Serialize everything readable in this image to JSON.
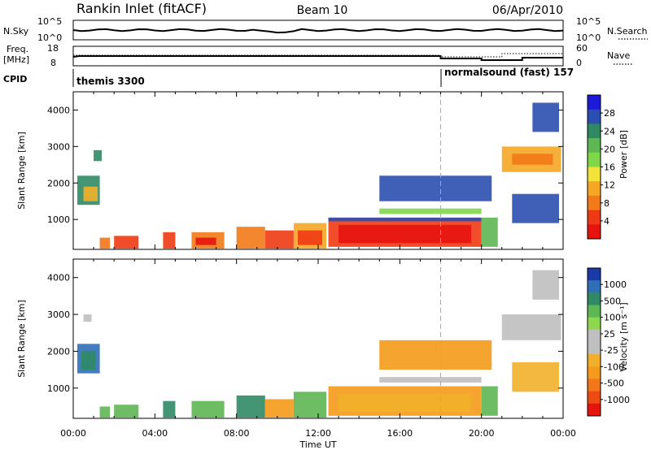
{
  "header": {
    "station": "Rankin Inlet (fitACF)",
    "beam": "Beam 10",
    "date": "06/Apr/2010"
  },
  "nsky_panel": {
    "left_label": "N.Sky",
    "left_ticks": [
      "10^5",
      "10^0"
    ],
    "right_label": "N.Search",
    "right_ticks": [
      "10^5",
      "10^0"
    ]
  },
  "freq_panel": {
    "left_label_line1": "Freq.",
    "left_label_line2": "[MHz]",
    "left_ticks": [
      "18",
      "8"
    ],
    "right_label": "Nave",
    "right_ticks": [
      "60",
      "0"
    ]
  },
  "cpid_panel": {
    "label": "CPID",
    "segments": [
      {
        "name": "themis 3300",
        "start_hour": 0,
        "end_hour": 18
      },
      {
        "name": "normalsound (fast) 157",
        "start_hour": 18,
        "end_hour": 24
      }
    ]
  },
  "power_panel": {
    "ylabel": "Slant Range [km]",
    "yticks": [
      "4000",
      "3000",
      "2000",
      "1000"
    ],
    "colorbar_label": "Power [dB]",
    "colorbar_ticks": [
      "28",
      "24",
      "20",
      "16",
      "12",
      "8",
      "4"
    ],
    "colorbar_colors": [
      "#1a1ad8",
      "#2b4fb0",
      "#2f8a64",
      "#5eb654",
      "#7ed84a",
      "#f2e23a",
      "#f5a623",
      "#f27a1a",
      "#ee3a14",
      "#e6140f"
    ]
  },
  "velocity_panel": {
    "ylabel": "Slant Range [km]",
    "yticks": [
      "4000",
      "3000",
      "2000",
      "1000"
    ],
    "colorbar_label": "Velocity [m s⁻¹]",
    "colorbar_ticks": [
      "1000",
      "500",
      "100",
      "25",
      "-25",
      "-100",
      "-500",
      "-1000"
    ],
    "colorbar_colors": [
      "#1a3aa8",
      "#2f6fb8",
      "#2f8a64",
      "#5eb654",
      "#8ed850",
      "#bfbfbf",
      "#bfbfbf",
      "#f2b02a",
      "#f59a1a",
      "#f2761a",
      "#ee4a14",
      "#e6140f"
    ]
  },
  "x_axis": {
    "label": "Time UT",
    "ticks": [
      "00:00",
      "04:00",
      "08:00",
      "12:00",
      "16:00",
      "20:00",
      "00:00"
    ]
  },
  "chart_data": {
    "type": "heatmap",
    "x_range_hours": [
      0,
      24
    ],
    "y_range_km": [
      180,
      4500
    ],
    "cursor_hour": 18,
    "power_regions": [
      {
        "t0": 0.2,
        "t1": 1.3,
        "r0": 1400,
        "r1": 2200,
        "color": "#2f8a64"
      },
      {
        "t0": 0.5,
        "t1": 1.2,
        "r0": 1500,
        "r1": 1900,
        "color": "#f2b02a"
      },
      {
        "t0": 1.0,
        "t1": 1.4,
        "r0": 2600,
        "r1": 2900,
        "color": "#2f8a64"
      },
      {
        "t0": 1.3,
        "t1": 1.8,
        "r0": 200,
        "r1": 500,
        "color": "#f2761a"
      },
      {
        "t0": 2.0,
        "t1": 3.2,
        "r0": 200,
        "r1": 550,
        "color": "#ee3a14"
      },
      {
        "t0": 4.4,
        "t1": 5.0,
        "r0": 200,
        "r1": 650,
        "color": "#ee3a14"
      },
      {
        "t0": 5.8,
        "t1": 7.4,
        "r0": 200,
        "r1": 650,
        "color": "#f27a1a"
      },
      {
        "t0": 6.0,
        "t1": 7.0,
        "r0": 300,
        "r1": 500,
        "color": "#e6140f"
      },
      {
        "t0": 8.0,
        "t1": 9.4,
        "r0": 200,
        "r1": 800,
        "color": "#f27a1a"
      },
      {
        "t0": 9.4,
        "t1": 10.8,
        "r0": 200,
        "r1": 700,
        "color": "#ee3a14"
      },
      {
        "t0": 10.8,
        "t1": 12.4,
        "r0": 200,
        "r1": 900,
        "color": "#f5a623"
      },
      {
        "t0": 11.0,
        "t1": 12.2,
        "r0": 300,
        "r1": 700,
        "color": "#ee3a14"
      },
      {
        "t0": 12.5,
        "t1": 20.0,
        "r0": 250,
        "r1": 1050,
        "color": "#ee3a14"
      },
      {
        "t0": 12.5,
        "t1": 20.0,
        "r0": 950,
        "r1": 1050,
        "color": "#2b4fb0"
      },
      {
        "t0": 13.0,
        "t1": 19.5,
        "r0": 350,
        "r1": 850,
        "color": "#e6140f"
      },
      {
        "t0": 20.0,
        "t1": 20.8,
        "r0": 250,
        "r1": 1050,
        "color": "#5eb654"
      },
      {
        "t0": 15.0,
        "t1": 20.0,
        "r0": 1150,
        "r1": 1300,
        "color": "#7ed84a"
      },
      {
        "t0": 15.0,
        "t1": 20.5,
        "r0": 1500,
        "r1": 2200,
        "color": "#2b4fb0"
      },
      {
        "t0": 21.0,
        "t1": 23.9,
        "r0": 2300,
        "r1": 3000,
        "color": "#f5a623"
      },
      {
        "t0": 21.5,
        "t1": 23.5,
        "r0": 2500,
        "r1": 2800,
        "color": "#f27a1a"
      },
      {
        "t0": 21.5,
        "t1": 23.8,
        "r0": 900,
        "r1": 1700,
        "color": "#2b4fb0"
      },
      {
        "t0": 22.5,
        "t1": 23.8,
        "r0": 3400,
        "r1": 4200,
        "color": "#2b4fb0"
      }
    ],
    "velocity_regions": [
      {
        "t0": 0.2,
        "t1": 1.3,
        "r0": 1400,
        "r1": 2200,
        "color": "#2f6fb8"
      },
      {
        "t0": 0.4,
        "t1": 1.1,
        "r0": 1500,
        "r1": 2000,
        "color": "#2f8a64"
      },
      {
        "t0": 0.5,
        "t1": 0.9,
        "r0": 2800,
        "r1": 3000,
        "color": "#bfbfbf"
      },
      {
        "t0": 1.3,
        "t1": 1.8,
        "r0": 200,
        "r1": 500,
        "color": "#5eb654"
      },
      {
        "t0": 2.0,
        "t1": 3.2,
        "r0": 200,
        "r1": 550,
        "color": "#5eb654"
      },
      {
        "t0": 4.4,
        "t1": 5.0,
        "r0": 200,
        "r1": 650,
        "color": "#2f8a64"
      },
      {
        "t0": 5.8,
        "t1": 7.4,
        "r0": 200,
        "r1": 650,
        "color": "#5eb654"
      },
      {
        "t0": 8.0,
        "t1": 9.4,
        "r0": 200,
        "r1": 800,
        "color": "#2f8a64"
      },
      {
        "t0": 9.4,
        "t1": 10.8,
        "r0": 200,
        "r1": 700,
        "color": "#f59a1a"
      },
      {
        "t0": 10.8,
        "t1": 12.4,
        "r0": 200,
        "r1": 900,
        "color": "#5eb654"
      },
      {
        "t0": 12.5,
        "t1": 20.0,
        "r0": 250,
        "r1": 1050,
        "color": "#f59a1a"
      },
      {
        "t0": 13.0,
        "t1": 19.5,
        "r0": 350,
        "r1": 850,
        "color": "#f2b02a"
      },
      {
        "t0": 20.0,
        "t1": 20.8,
        "r0": 250,
        "r1": 1050,
        "color": "#5eb654"
      },
      {
        "t0": 15.0,
        "t1": 20.0,
        "r0": 1150,
        "r1": 1300,
        "color": "#bfbfbf"
      },
      {
        "t0": 15.0,
        "t1": 20.5,
        "r0": 1500,
        "r1": 2300,
        "color": "#f59a1a"
      },
      {
        "t0": 21.0,
        "t1": 23.9,
        "r0": 2300,
        "r1": 3000,
        "color": "#bfbfbf"
      },
      {
        "t0": 21.5,
        "t1": 23.8,
        "r0": 900,
        "r1": 1700,
        "color": "#f2b02a"
      },
      {
        "t0": 22.5,
        "t1": 23.8,
        "r0": 3400,
        "r1": 4200,
        "color": "#bfbfbf"
      }
    ]
  }
}
